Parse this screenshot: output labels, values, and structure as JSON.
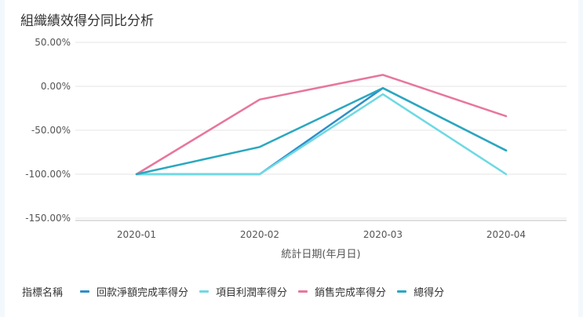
{
  "page": {
    "title": "組織績效得分同比分析"
  },
  "chart_data": {
    "type": "line",
    "title": "組織績效得分同比分析",
    "xlabel": "統計日期(年月日)",
    "ylabel": "",
    "categories": [
      "2020-01",
      "2020-02",
      "2020-03",
      "2020-04"
    ],
    "y_ticks": [
      50,
      0,
      -50,
      -100,
      -150
    ],
    "y_tick_labels": [
      "50.00%",
      "0.00%",
      "-50.00%",
      "-100.00%",
      "-150.00%"
    ],
    "ylim": [
      -150,
      50
    ],
    "grid": true,
    "legend_title": "指標名稱",
    "legend_position": "bottom-left",
    "series": [
      {
        "name": "回款淨額完成率得分",
        "color": "#2f8fc8",
        "values": [
          -100,
          -100,
          -2,
          -73
        ]
      },
      {
        "name": "項目利潤率得分",
        "color": "#6dd9e3",
        "values": [
          -100,
          -100,
          -9,
          -100
        ]
      },
      {
        "name": "銷售完成率得分",
        "color": "#e8769c",
        "values": [
          -100,
          -15,
          13,
          -34
        ]
      },
      {
        "name": "總得分",
        "color": "#2aa7bf",
        "values": [
          -100,
          -69,
          -2,
          -73
        ]
      }
    ]
  }
}
